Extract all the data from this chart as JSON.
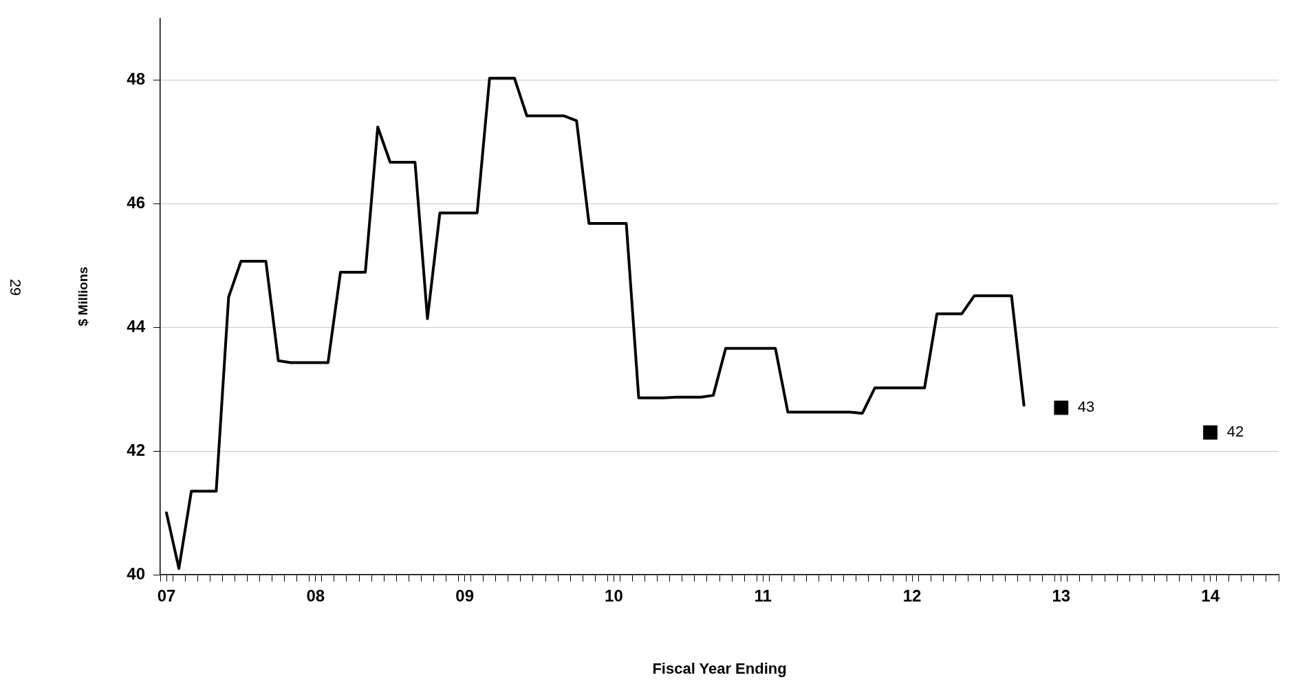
{
  "chart_data": {
    "type": "line",
    "xlabel": "Fiscal Year Ending",
    "ylabel": "$ Millions",
    "annotations": [
      "29"
    ],
    "xlim": [
      6.9583,
      14.4583
    ],
    "xticks": [
      {
        "value": 7,
        "label": "07"
      },
      {
        "value": 8,
        "label": "08"
      },
      {
        "value": 9,
        "label": "09"
      },
      {
        "value": 10,
        "label": "10"
      },
      {
        "value": 11,
        "label": "11"
      },
      {
        "value": 12,
        "label": "12"
      },
      {
        "value": 13,
        "label": "13"
      },
      {
        "value": 14,
        "label": "14"
      },
      {
        "value": 6.9583,
        "label": null
      },
      {
        "value": 7.0417,
        "label": null
      },
      {
        "value": 7.125,
        "label": null
      },
      {
        "value": 7.2083,
        "label": null
      },
      {
        "value": 7.2917,
        "label": null
      },
      {
        "value": 7.375,
        "label": null
      },
      {
        "value": 7.4583,
        "label": null
      },
      {
        "value": 7.5417,
        "label": null
      },
      {
        "value": 7.625,
        "label": null
      },
      {
        "value": 7.7083,
        "label": null
      },
      {
        "value": 7.7917,
        "label": null
      },
      {
        "value": 7.875,
        "label": null
      },
      {
        "value": 7.9583,
        "label": null
      },
      {
        "value": 8.0417,
        "label": null
      },
      {
        "value": 8.125,
        "label": null
      },
      {
        "value": 8.2083,
        "label": null
      },
      {
        "value": 8.2917,
        "label": null
      },
      {
        "value": 8.375,
        "label": null
      },
      {
        "value": 8.4583,
        "label": null
      },
      {
        "value": 8.5417,
        "label": null
      },
      {
        "value": 8.625,
        "label": null
      },
      {
        "value": 8.7083,
        "label": null
      },
      {
        "value": 8.7917,
        "label": null
      },
      {
        "value": 8.875,
        "label": null
      },
      {
        "value": 8.9583,
        "label": null
      },
      {
        "value": 9.0417,
        "label": null
      },
      {
        "value": 9.125,
        "label": null
      },
      {
        "value": 9.2083,
        "label": null
      },
      {
        "value": 9.2917,
        "label": null
      },
      {
        "value": 9.375,
        "label": null
      },
      {
        "value": 9.4583,
        "label": null
      },
      {
        "value": 9.5417,
        "label": null
      },
      {
        "value": 9.625,
        "label": null
      },
      {
        "value": 9.7083,
        "label": null
      },
      {
        "value": 9.7917,
        "label": null
      },
      {
        "value": 9.875,
        "label": null
      },
      {
        "value": 9.9583,
        "label": null
      },
      {
        "value": 10.0417,
        "label": null
      },
      {
        "value": 10.125,
        "label": null
      },
      {
        "value": 10.2083,
        "label": null
      },
      {
        "value": 10.2917,
        "label": null
      },
      {
        "value": 10.375,
        "label": null
      },
      {
        "value": 10.4583,
        "label": null
      },
      {
        "value": 10.5417,
        "label": null
      },
      {
        "value": 10.625,
        "label": null
      },
      {
        "value": 10.7083,
        "label": null
      },
      {
        "value": 10.7917,
        "label": null
      },
      {
        "value": 10.875,
        "label": null
      },
      {
        "value": 10.9583,
        "label": null
      },
      {
        "value": 11.0417,
        "label": null
      },
      {
        "value": 11.125,
        "label": null
      },
      {
        "value": 11.2083,
        "label": null
      },
      {
        "value": 11.2917,
        "label": null
      },
      {
        "value": 11.375,
        "label": null
      },
      {
        "value": 11.4583,
        "label": null
      },
      {
        "value": 11.5417,
        "label": null
      },
      {
        "value": 11.625,
        "label": null
      },
      {
        "value": 11.7083,
        "label": null
      },
      {
        "value": 11.7917,
        "label": null
      },
      {
        "value": 11.875,
        "label": null
      },
      {
        "value": 11.9583,
        "label": null
      },
      {
        "value": 12.0417,
        "label": null
      },
      {
        "value": 12.125,
        "label": null
      },
      {
        "value": 12.2083,
        "label": null
      },
      {
        "value": 12.2917,
        "label": null
      },
      {
        "value": 12.375,
        "label": null
      },
      {
        "value": 12.4583,
        "label": null
      },
      {
        "value": 12.5417,
        "label": null
      },
      {
        "value": 12.625,
        "label": null
      },
      {
        "value": 12.7083,
        "label": null
      },
      {
        "value": 12.7917,
        "label": null
      },
      {
        "value": 12.875,
        "label": null
      },
      {
        "value": 12.9583,
        "label": null
      },
      {
        "value": 13.0417,
        "label": null
      },
      {
        "value": 13.125,
        "label": null
      },
      {
        "value": 13.2083,
        "label": null
      },
      {
        "value": 13.2917,
        "label": null
      },
      {
        "value": 13.375,
        "label": null
      },
      {
        "value": 13.4583,
        "label": null
      },
      {
        "value": 13.5417,
        "label": null
      },
      {
        "value": 13.625,
        "label": null
      },
      {
        "value": 13.7083,
        "label": null
      },
      {
        "value": 13.7917,
        "label": null
      },
      {
        "value": 13.875,
        "label": null
      },
      {
        "value": 13.9583,
        "label": null
      },
      {
        "value": 14.0417,
        "label": null
      },
      {
        "value": 14.125,
        "label": null
      },
      {
        "value": 14.2083,
        "label": null
      },
      {
        "value": 14.2917,
        "label": null
      },
      {
        "value": 14.375,
        "label": null
      },
      {
        "value": 14.4583,
        "label": null
      }
    ],
    "ylim": [
      40,
      49
    ],
    "yticks": [
      40,
      42,
      44,
      46,
      48
    ],
    "grid": "y",
    "legend": false,
    "series": [
      {
        "type": "line",
        "color": "#000000",
        "marker": "none",
        "line_style": "solid",
        "x": [
          7,
          7.0833,
          7.1667,
          7.25,
          7.3333,
          7.4167,
          7.5,
          7.5833,
          7.6667,
          7.75,
          7.8333,
          7.9167,
          8,
          8.0833,
          8.1667,
          8.25,
          8.3333,
          8.4167,
          8.5,
          8.5833,
          8.6667,
          8.75,
          8.8333,
          8.9167,
          9,
          9.0833,
          9.1667,
          9.25,
          9.3333,
          9.4167,
          9.5,
          9.5833,
          9.6667,
          9.75,
          9.8333,
          9.9167,
          10,
          10.0833,
          10.1667,
          10.25,
          10.3333,
          10.4167,
          10.5,
          10.5833,
          10.6667,
          10.75,
          10.8333,
          10.9167,
          11,
          11.0833,
          11.1667,
          11.25,
          11.3333,
          11.4167,
          11.5,
          11.5833,
          11.6667,
          11.75,
          11.8333,
          11.9167,
          12,
          12.0833,
          12.1667,
          12.25,
          12.3333,
          12.4167,
          12.5,
          12.5833,
          12.6667,
          12.75
        ],
        "values": [
          41.0,
          40.1,
          41.35,
          41.35,
          41.35,
          44.49,
          45.07,
          45.07,
          45.07,
          43.46,
          43.43,
          43.43,
          43.43,
          43.43,
          44.89,
          44.89,
          44.89,
          47.24,
          46.67,
          46.67,
          46.67,
          44.14,
          45.85,
          45.85,
          45.85,
          45.85,
          48.03,
          48.03,
          48.03,
          47.42,
          47.42,
          47.42,
          47.42,
          47.34,
          45.68,
          45.68,
          45.68,
          45.68,
          42.86,
          42.86,
          42.86,
          42.87,
          42.87,
          42.87,
          42.9,
          43.66,
          43.66,
          43.66,
          43.66,
          43.66,
          42.63,
          42.63,
          42.63,
          42.63,
          42.63,
          42.63,
          42.61,
          43.02,
          43.02,
          43.02,
          43.02,
          43.02,
          44.22,
          44.22,
          44.22,
          44.51,
          44.51,
          44.51,
          44.51,
          42.74
        ]
      },
      {
        "type": "scatter",
        "color": "#000000",
        "marker": "square",
        "x": [
          13,
          14
        ],
        "values": [
          42.7,
          42.3
        ],
        "value_labels": [
          "43",
          "42"
        ]
      }
    ]
  }
}
